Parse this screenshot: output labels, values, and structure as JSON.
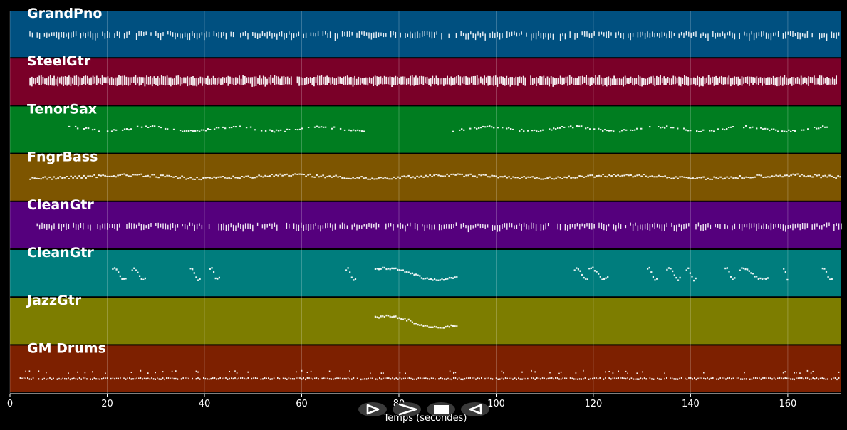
{
  "chart_data": {
    "type": "piano-roll",
    "xlabel": "Temps (secondes)",
    "xlim": [
      0,
      171
    ],
    "xticks": [
      0,
      20,
      40,
      60,
      80,
      100,
      120,
      140,
      160
    ],
    "grid": true,
    "tracks": [
      {
        "name": "GrandPno",
        "color": "#005080",
        "pattern": "ticks",
        "segments": [
          [
            4,
            171
          ]
        ]
      },
      {
        "name": "SteelGtr",
        "color": "#7a0028",
        "pattern": "block",
        "segments": [
          [
            4,
            58
          ],
          [
            59,
            106
          ],
          [
            107,
            170
          ]
        ]
      },
      {
        "name": "TenorSax",
        "color": "#007d20",
        "pattern": "sparse",
        "segments": [
          [
            12,
            73
          ],
          [
            91,
            168
          ]
        ]
      },
      {
        "name": "FngrBass",
        "color": "#7d5500",
        "pattern": "wave",
        "segments": [
          [
            4,
            171
          ]
        ]
      },
      {
        "name": "CleanGtr",
        "color": "#55007d",
        "pattern": "ticks",
        "segments": [
          [
            5,
            171
          ]
        ]
      },
      {
        "name": "CleanGtr",
        "color": "#007d7d",
        "pattern": "phrases",
        "segments": [
          [
            21,
            24
          ],
          [
            25,
            28
          ],
          [
            37,
            39
          ],
          [
            41,
            43
          ],
          [
            69,
            71
          ],
          [
            75,
            92
          ],
          [
            116,
            119
          ],
          [
            119,
            123
          ],
          [
            131,
            133
          ],
          [
            135,
            138
          ],
          [
            139,
            141
          ],
          [
            147,
            149
          ],
          [
            150,
            156
          ],
          [
            159,
            160
          ],
          [
            167,
            169
          ]
        ]
      },
      {
        "name": "JazzGtr",
        "color": "#7d7d00",
        "pattern": "phrases",
        "segments": [
          [
            75,
            92
          ]
        ]
      },
      {
        "name": "GM Drums",
        "color": "#7d2000",
        "pattern": "drums",
        "segments": [
          [
            2,
            171
          ]
        ]
      }
    ]
  },
  "controls": {
    "play": "play-icon",
    "fast_forward": "fast-forward-icon",
    "stop": "stop-icon",
    "rewind": "rewind-icon"
  }
}
